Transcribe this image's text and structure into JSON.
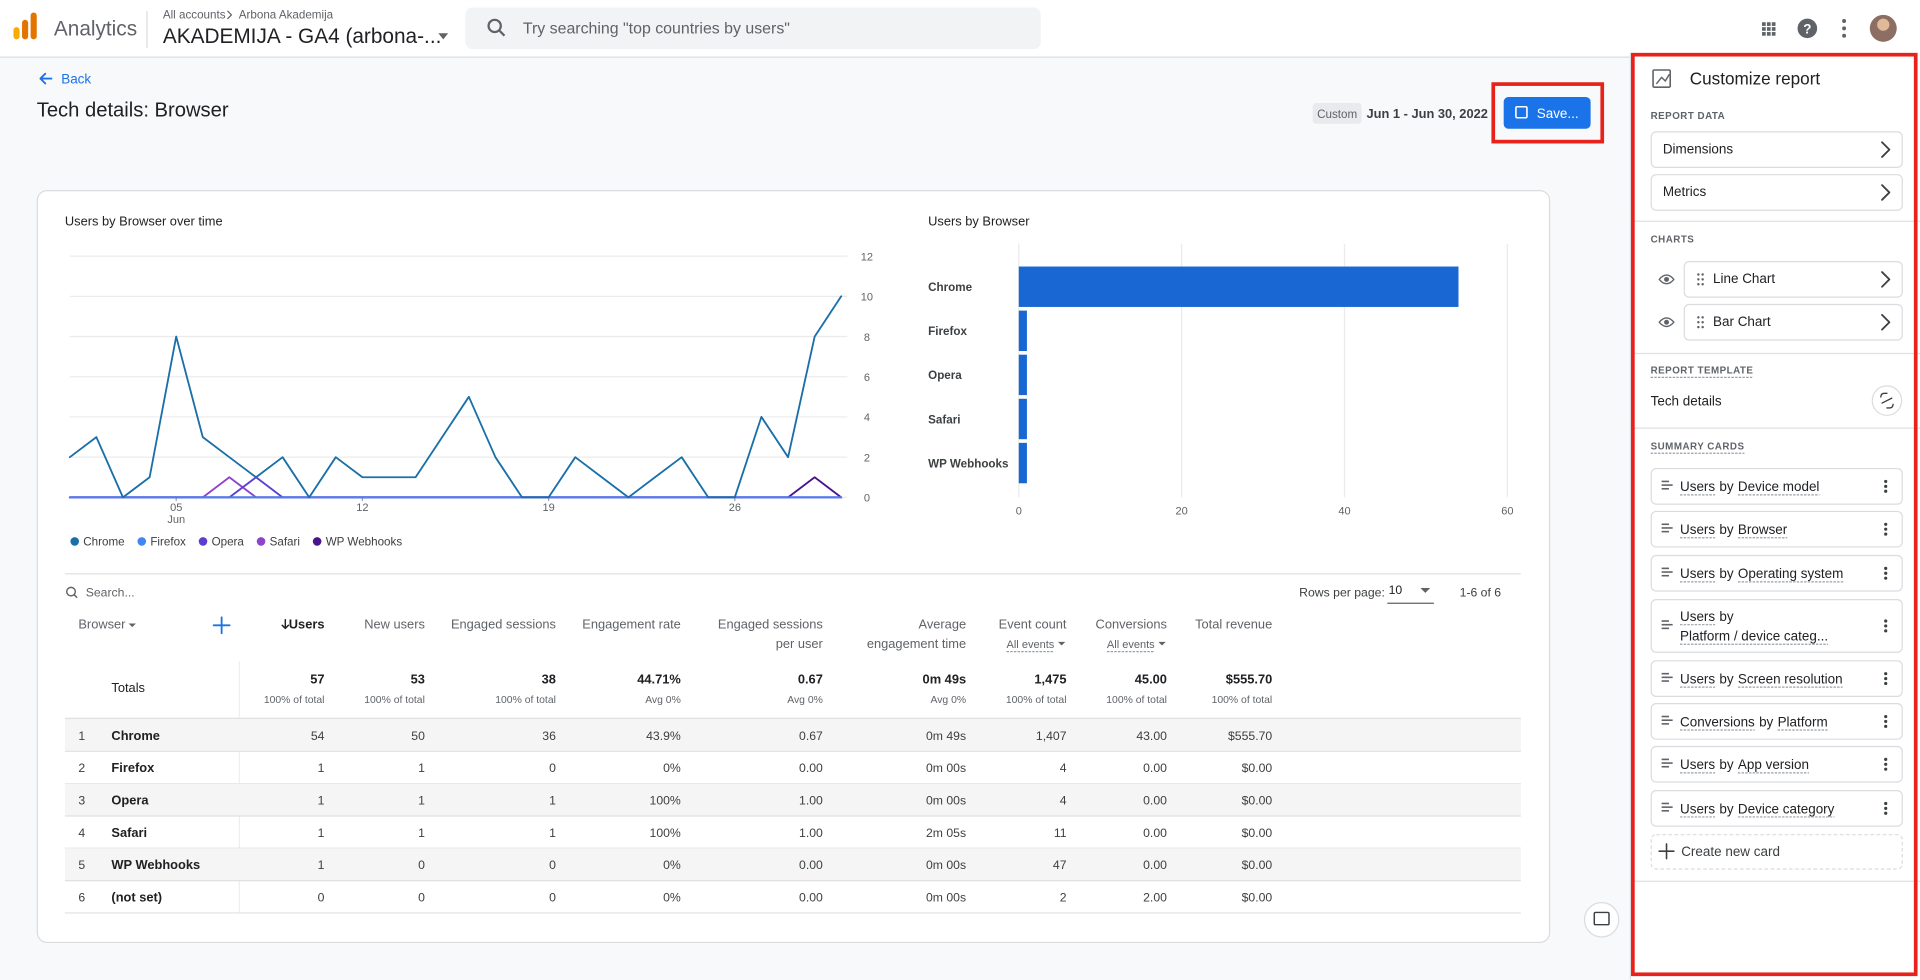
{
  "header": {
    "app": "Analytics",
    "breadcrumb": [
      "All accounts",
      "Arbona Akademija"
    ],
    "property": "AKADEMIJA - GA4 (arbona-...",
    "search_placeholder": "Try searching \"top countries by users\""
  },
  "report": {
    "back": "Back",
    "title": "Tech details: Browser",
    "date_badge": "Custom",
    "date_range": "Jun 1 - Jun 30, 2022",
    "save": "Save..."
  },
  "line_chart": {
    "type": "line",
    "title": "Users by Browser over time",
    "x": [
      1,
      2,
      3,
      4,
      5,
      6,
      7,
      8,
      9,
      10,
      11,
      12,
      13,
      14,
      15,
      16,
      17,
      18,
      19,
      20,
      21,
      22,
      23,
      24,
      25,
      26,
      27,
      28,
      29,
      30
    ],
    "xlim": [
      1,
      30
    ],
    "xticks": [
      {
        "value": 5,
        "label": "05"
      },
      12,
      19,
      26
    ],
    "x_month": "Jun",
    "ylim": [
      0,
      12
    ],
    "yticks": [
      0,
      2,
      4,
      6,
      8,
      10,
      12
    ],
    "grid": true,
    "series": [
      {
        "name": "Chrome",
        "color": "#1a6fa8",
        "values": [
          2,
          3,
          0,
          1,
          8,
          3,
          2,
          1,
          2,
          0,
          2,
          1,
          1,
          1,
          3,
          5,
          2,
          0,
          0,
          2,
          1,
          0,
          1,
          2,
          0,
          0,
          4,
          2,
          8,
          10
        ]
      },
      {
        "name": "Firefox",
        "color": "#4285f4",
        "values": [
          0,
          0,
          0,
          0,
          0,
          0,
          0,
          0,
          0,
          0,
          0,
          0,
          0,
          0,
          0,
          0,
          0,
          0,
          0,
          0,
          0,
          0,
          0,
          0,
          0,
          0,
          0,
          0,
          0,
          0
        ]
      },
      {
        "name": "Opera",
        "color": "#5c3fd1",
        "values": [
          0,
          0,
          0,
          0,
          0,
          0,
          0,
          1,
          0,
          0,
          0,
          0,
          0,
          0,
          0,
          0,
          0,
          0,
          0,
          0,
          0,
          0,
          0,
          0,
          0,
          0,
          0,
          0,
          0,
          0
        ]
      },
      {
        "name": "Safari",
        "color": "#8e44c9",
        "values": [
          0,
          0,
          0,
          0,
          0,
          0,
          1,
          0,
          0,
          0,
          0,
          0,
          0,
          0,
          0,
          0,
          0,
          0,
          0,
          0,
          0,
          0,
          0,
          0,
          0,
          0,
          0,
          0,
          0,
          0
        ]
      },
      {
        "name": "WP Webhooks",
        "color": "#4a148c",
        "values": [
          0,
          0,
          0,
          0,
          0,
          0,
          0,
          0,
          0,
          0,
          0,
          0,
          0,
          0,
          0,
          0,
          0,
          0,
          0,
          0,
          0,
          0,
          0,
          0,
          0,
          0,
          0,
          0,
          1,
          0
        ]
      }
    ]
  },
  "bar_chart": {
    "type": "bar",
    "orientation": "horizontal",
    "title": "Users by Browser",
    "categories": [
      "Chrome",
      "Firefox",
      "Opera",
      "Safari",
      "WP Webhooks"
    ],
    "values": [
      54,
      1,
      1,
      1,
      1
    ],
    "color": "#1967d2",
    "xlim": [
      0,
      60
    ],
    "xticks": [
      0,
      20,
      40,
      60
    ],
    "grid": true
  },
  "table": {
    "search_placeholder": "Search...",
    "rows_per_page_label": "Rows per page:",
    "rows_per_page": "10",
    "pagination": "1-6 of 6",
    "columns": [
      {
        "label": "Browser"
      },
      {
        "label": "Users"
      },
      {
        "label": "New users"
      },
      {
        "label": "Engaged sessions"
      },
      {
        "label": "Engagement rate"
      },
      {
        "label": [
          "Engaged sessions",
          "per user"
        ]
      },
      {
        "label": [
          "Average",
          "engagement time"
        ]
      },
      {
        "label": "Event count",
        "sublabel": "All events"
      },
      {
        "label": "Conversions",
        "sublabel": "All events"
      },
      {
        "label": "Total revenue"
      }
    ],
    "totals": {
      "label": "Totals",
      "values": [
        "57",
        "53",
        "38",
        "44.71%",
        "0.67",
        "0m 49s",
        "1,475",
        "45.00",
        "$555.70"
      ],
      "notes": [
        "100% of total",
        "100% of total",
        "100% of total",
        "Avg 0%",
        "Avg 0%",
        "Avg 0%",
        "100% of total",
        "100% of total",
        "100% of total"
      ]
    },
    "rows": [
      [
        "1",
        "Chrome",
        "54",
        "50",
        "36",
        "43.9%",
        "0.67",
        "0m 49s",
        "1,407",
        "43.00",
        "$555.70"
      ],
      [
        "2",
        "Firefox",
        "1",
        "1",
        "0",
        "0%",
        "0.00",
        "0m 00s",
        "4",
        "0.00",
        "$0.00"
      ],
      [
        "3",
        "Opera",
        "1",
        "1",
        "1",
        "100%",
        "1.00",
        "0m 00s",
        "4",
        "0.00",
        "$0.00"
      ],
      [
        "4",
        "Safari",
        "1",
        "1",
        "1",
        "100%",
        "1.00",
        "2m 05s",
        "11",
        "0.00",
        "$0.00"
      ],
      [
        "5",
        "WP Webhooks",
        "1",
        "0",
        "0",
        "0%",
        "0.00",
        "0m 00s",
        "47",
        "0.00",
        "$0.00"
      ],
      [
        "6",
        "(not set)",
        "0",
        "0",
        "0",
        "0%",
        "0.00",
        "0m 00s",
        "2",
        "2.00",
        "$0.00"
      ]
    ]
  },
  "panel": {
    "title": "Customize report",
    "report_data_label": "REPORT DATA",
    "report_data": [
      "Dimensions",
      "Metrics"
    ],
    "charts_label": "CHARTS",
    "charts": [
      "Line Chart",
      "Bar Chart"
    ],
    "template_label": "REPORT TEMPLATE",
    "template": "Tech details",
    "summary_label": "SUMMARY CARDS",
    "cards": [
      [
        "Users",
        "by",
        "Device model"
      ],
      [
        "Users",
        "by",
        "Browser"
      ],
      [
        "Users",
        "by",
        "Operating system"
      ],
      [
        "Users",
        "by",
        "Platform / device categ..."
      ],
      [
        "Users",
        "by",
        "Screen resolution"
      ],
      [
        "Conversions",
        "by",
        "Platform"
      ],
      [
        "Users",
        "by",
        "App version"
      ],
      [
        "Users",
        "by",
        "Device category"
      ]
    ],
    "create_card": "Create new card"
  }
}
